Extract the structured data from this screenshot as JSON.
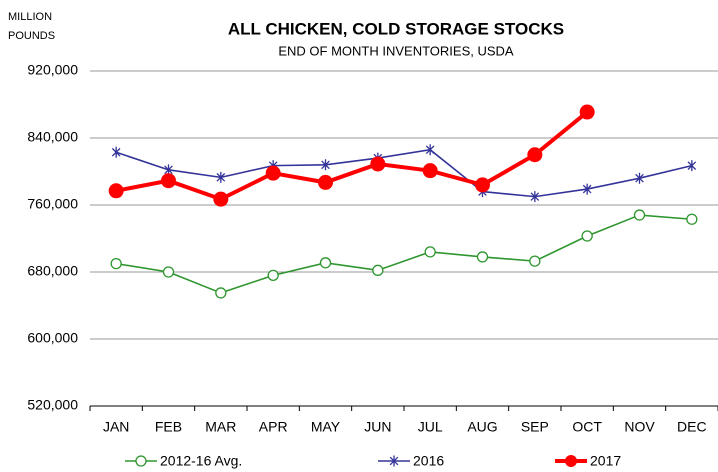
{
  "chart_data": {
    "type": "line",
    "title": "ALL CHICKEN, COLD STORAGE STOCKS",
    "subtitle": "END OF MONTH INVENTORIES, USDA",
    "ylabel": [
      "MILLION",
      "POUNDS"
    ],
    "categories": [
      "JAN",
      "FEB",
      "MAR",
      "APR",
      "MAY",
      "JUN",
      "JUL",
      "AUG",
      "SEP",
      "OCT",
      "NOV",
      "DEC"
    ],
    "ylim": [
      520000,
      920000
    ],
    "yticks": [
      {
        "value": 520000,
        "label": "520,000"
      },
      {
        "value": 600000,
        "label": "600,000"
      },
      {
        "value": 680000,
        "label": "680,000"
      },
      {
        "value": 760000,
        "label": "760,000"
      },
      {
        "value": 840000,
        "label": "840,000"
      },
      {
        "value": 920000,
        "label": "920,000"
      }
    ],
    "grid": true,
    "legend": "bottom",
    "series": [
      {
        "name": "2012-16 Avg.",
        "color": "#2e962e",
        "marker": "open-circle",
        "values": [
          690000,
          680000,
          655000,
          676000,
          691000,
          682000,
          704000,
          698000,
          693000,
          723000,
          748000,
          743000
        ]
      },
      {
        "name": "2016",
        "color": "#333399",
        "marker": "asterisk",
        "values": [
          823000,
          802000,
          793000,
          807000,
          808000,
          816000,
          826000,
          776000,
          770000,
          779000,
          792000,
          807000
        ]
      },
      {
        "name": "2017",
        "color": "#ff0000",
        "marker": "filled-circle",
        "values": [
          777000,
          789000,
          767000,
          798000,
          787000,
          809000,
          801000,
          784000,
          820000,
          871000,
          null,
          null
        ]
      }
    ]
  }
}
